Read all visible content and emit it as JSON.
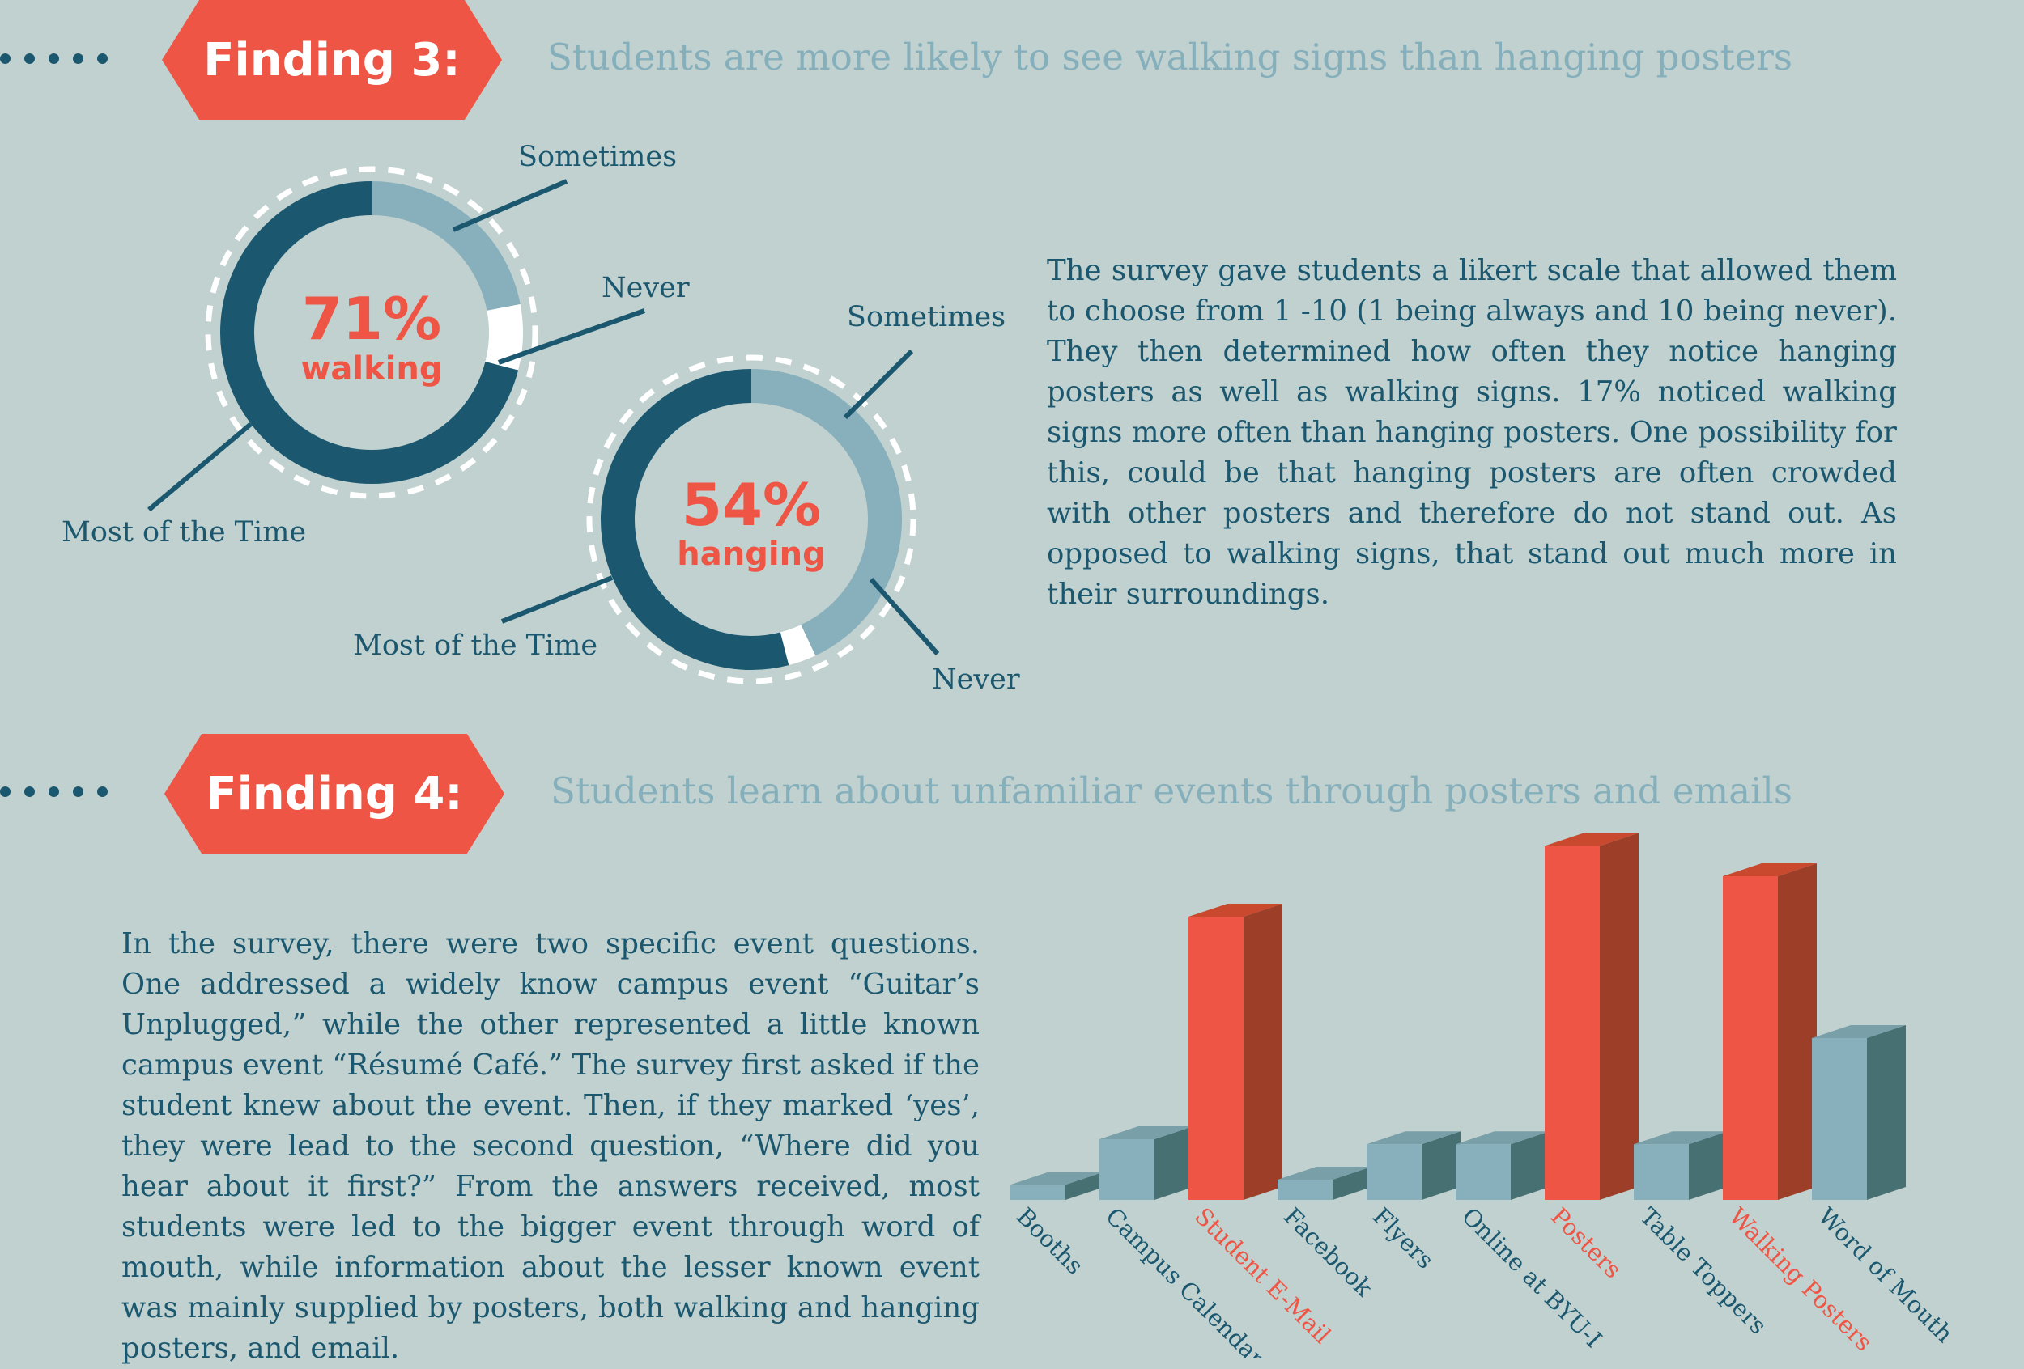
{
  "finding3": {
    "badge": "Finding 3:",
    "headline": "Students are more likely to see walking signs than hanging posters",
    "walking": {
      "percent": "71%",
      "word": "walking",
      "label_sometimes": "Sometimes",
      "label_never": "Never",
      "label_most": "Most of the Time"
    },
    "hanging": {
      "percent": "54%",
      "word": "hanging",
      "label_sometimes": "Sometimes",
      "label_never": "Never",
      "label_most": "Most of the Time"
    },
    "paragraph": "The survey gave students a likert scale that allowed them to choose from 1 -10 (1 being always and 10 being never). They then determined how often they notice hanging posters as well as walking signs. 17% noticed walking signs more often than hanging posters. One possibility for this, could be that hanging posters are often crowded with other posters and therefore do not stand out. As opposed to walking signs, that stand out much more in their surroundings."
  },
  "finding4": {
    "badge": "Finding 4:",
    "headline": "Students learn about unfamiliar events through posters and emails",
    "paragraph": "In the survey, there were two specific event questions. One addressed a widely know campus event “Guitar’s Unplugged,” while the other represented a little known campus event “Résumé Café.” The survey first asked if the student knew about the event. Then, if they marked ‘yes’, they were lead to the second question, “Where did you hear about it first?” From the answers received, most students were led to the bigger event through word of mouth, while information about the lesser known event was mainly supplied by posters, both walking and hanging posters, and email."
  },
  "colors": {
    "dark": "#1b5870",
    "light": "#88afbc",
    "accent": "#ee5545",
    "background": "#c0d1cf",
    "headline": "#86afbc"
  },
  "chart_data": [
    {
      "type": "pie",
      "categories": [
        "Most of the Time",
        "Sometimes",
        "Never"
      ],
      "values": [
        71,
        22,
        7
      ],
      "center_label": "71% walking",
      "colors": [
        "#1b5870",
        "#88afbc",
        "#ffffff"
      ]
    },
    {
      "type": "pie",
      "categories": [
        "Most of the Time",
        "Sometimes",
        "Never"
      ],
      "values": [
        54,
        43,
        3
      ],
      "center_label": "54% hanging",
      "colors": [
        "#1b5870",
        "#88afbc",
        "#ffffff"
      ]
    },
    {
      "type": "bar",
      "categories": [
        "Booths",
        "Campus Calendar",
        "Student E-Mail",
        "Facebook",
        "Flyers",
        "Online at BYU-I",
        "Posters",
        "Table Toppers",
        "Walking Posters",
        "Word of Mouth"
      ],
      "values": [
        3,
        12,
        56,
        4,
        11,
        11,
        70,
        11,
        64,
        32
      ],
      "highlighted": [
        false,
        false,
        true,
        false,
        false,
        false,
        true,
        false,
        true,
        false
      ],
      "ylim": [
        0,
        72
      ],
      "grid": false,
      "legend": "none"
    }
  ]
}
